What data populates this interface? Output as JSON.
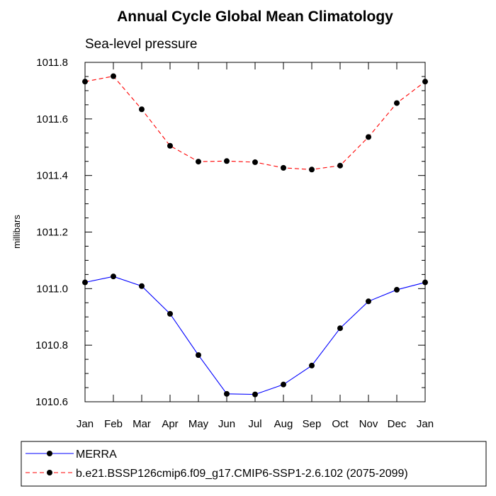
{
  "chart_data": {
    "type": "line",
    "title": "Annual Cycle Global Mean Climatology",
    "subtitle": "Sea-level pressure",
    "xlabel": "",
    "ylabel": "millibars",
    "categories": [
      "Jan",
      "Feb",
      "Mar",
      "Apr",
      "May",
      "Jun",
      "Jul",
      "Aug",
      "Sep",
      "Oct",
      "Nov",
      "Dec",
      "Jan"
    ],
    "ylim": [
      1010.6,
      1011.8
    ],
    "yticks": [
      1010.6,
      1010.8,
      1011.0,
      1011.2,
      1011.4,
      1011.6,
      1011.8
    ],
    "ytick_labels": [
      "1010.6",
      "1010.8",
      "1011.0",
      "1011.2",
      "1011.4",
      "1011.6",
      "1011.8"
    ],
    "grid": false,
    "legend_position": "bottom",
    "series": [
      {
        "name": "MERRA",
        "color": "#0000ff",
        "dashed": false,
        "values": [
          1011.022,
          1011.043,
          1011.009,
          1010.911,
          1010.765,
          1010.628,
          1010.626,
          1010.661,
          1010.728,
          1010.86,
          1010.955,
          1010.996,
          1011.022
        ]
      },
      {
        "name": "b.e21.BSSP126cmip6.f09_g17.CMIP6-SSP1-2.6.102 (2075-2099)",
        "color": "#ff0000",
        "dashed": true,
        "values": [
          1011.732,
          1011.751,
          1011.634,
          1011.505,
          1011.449,
          1011.451,
          1011.447,
          1011.427,
          1011.421,
          1011.435,
          1011.536,
          1011.656,
          1011.732
        ]
      }
    ]
  }
}
